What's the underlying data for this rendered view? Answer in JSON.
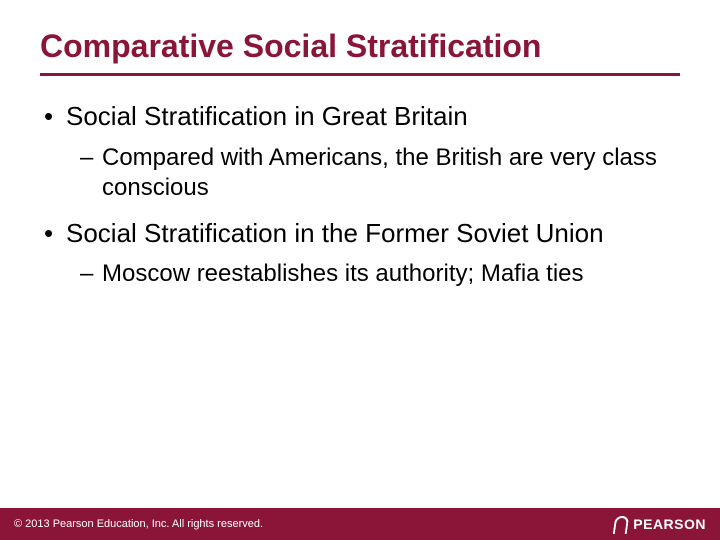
{
  "colors": {
    "accent": "#8a1538",
    "footer_bg": "#8a1538",
    "title_color": "#8a1538",
    "text_color": "#000000",
    "footer_text": "#ffffff"
  },
  "slide": {
    "title": "Comparative Social Stratification",
    "bullets": [
      {
        "text": "Social Stratification in Great Britain",
        "sub": "Compared with Americans, the British are very class conscious"
      },
      {
        "text": "Social Stratification in the Former Soviet Union",
        "sub": "Moscow reestablishes its authority; Mafia ties"
      }
    ]
  },
  "footer": {
    "copyright": "© 2013 Pearson Education, Inc. All rights reserved.",
    "brand": "PEARSON"
  }
}
